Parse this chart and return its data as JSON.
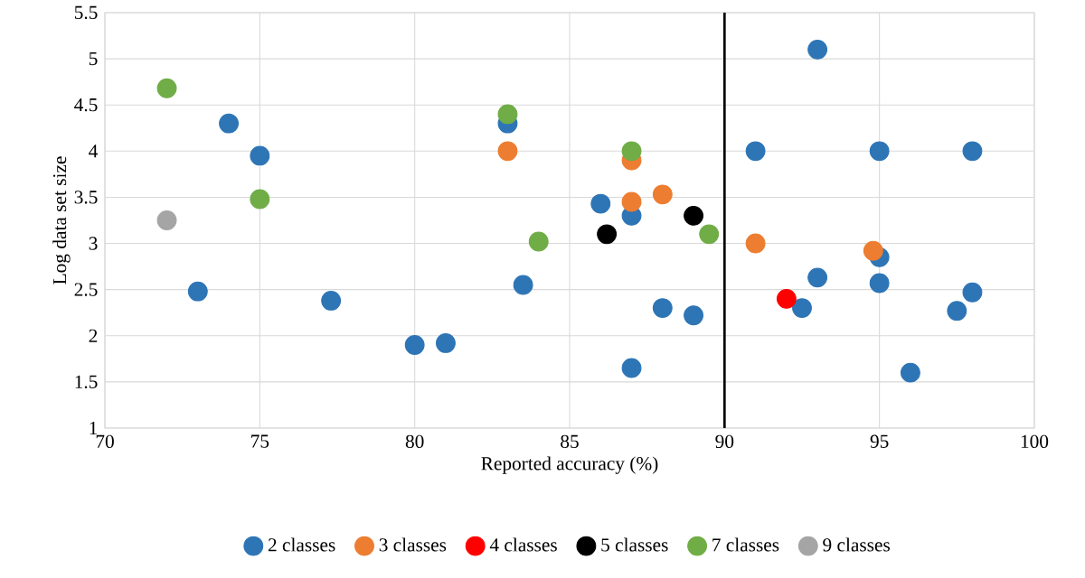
{
  "chart_data": {
    "type": "scatter",
    "xlabel": "Reported accuracy (%)",
    "ylabel": "Log data set size",
    "xlim": [
      70,
      100
    ],
    "xticks": [
      70,
      75,
      80,
      85,
      90,
      95,
      100
    ],
    "ylim": [
      1,
      5.5
    ],
    "yticks": [
      1,
      1.5,
      2,
      2.5,
      3,
      3.5,
      4,
      4.5,
      5,
      5.5
    ],
    "grid": true,
    "legend": "bottom",
    "marker": "circle",
    "ref_lines": [
      {
        "axis": "x",
        "value": 90,
        "color": "#000000"
      }
    ],
    "series": [
      {
        "name": "2 classes",
        "color": "#2e75b6",
        "x": [
          73,
          74,
          75,
          77.3,
          80,
          81,
          83,
          83.5,
          86,
          87,
          87,
          88,
          89,
          91,
          92.5,
          93,
          93,
          95,
          95,
          95,
          96,
          97.5,
          98,
          98
        ],
        "values": [
          2.48,
          4.3,
          3.95,
          2.38,
          1.9,
          1.92,
          4.3,
          2.55,
          3.43,
          3.3,
          1.65,
          2.3,
          2.22,
          4,
          2.3,
          5.1,
          2.63,
          4,
          2.85,
          2.57,
          1.6,
          2.27,
          2.47,
          4
        ]
      },
      {
        "name": "3 classes",
        "color": "#ed7d31",
        "x": [
          83,
          87,
          87,
          88,
          91,
          94.8
        ],
        "values": [
          4,
          3.9,
          3.45,
          3.53,
          3,
          2.92
        ]
      },
      {
        "name": "4 classes",
        "color": "#ff0000",
        "x": [
          92
        ],
        "values": [
          2.4
        ]
      },
      {
        "name": "5 classes",
        "color": "#000000",
        "x": [
          86.2,
          89
        ],
        "values": [
          3.1,
          3.3
        ]
      },
      {
        "name": "7 classes",
        "color": "#70ad47",
        "x": [
          72,
          75,
          83,
          84,
          87,
          89.5
        ],
        "values": [
          4.68,
          3.48,
          4.4,
          3.02,
          4,
          3.1
        ]
      },
      {
        "name": "9 classes",
        "color": "#a5a5a5",
        "x": [
          72
        ],
        "values": [
          3.25
        ]
      }
    ]
  }
}
